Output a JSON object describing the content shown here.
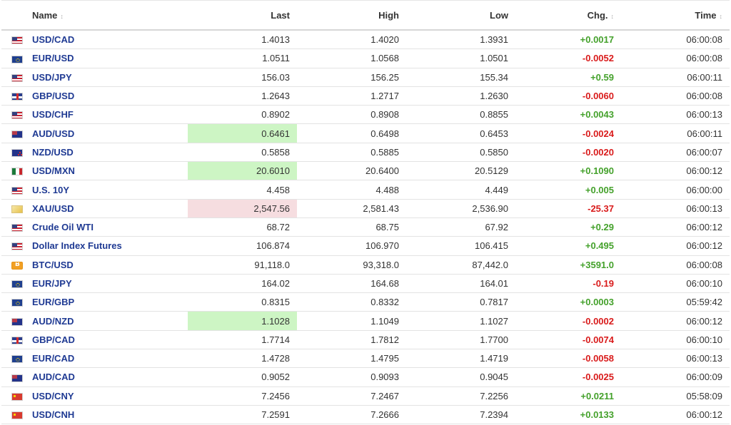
{
  "headers": {
    "name": "Name",
    "last": "Last",
    "high": "High",
    "low": "Low",
    "chg": "Chg.",
    "time": "Time"
  },
  "sort_icon": "↕",
  "rows": [
    {
      "flag": "us",
      "name": "USD/CAD",
      "last": "1.4013",
      "high": "1.4020",
      "low": "1.3931",
      "chg": "+0.0017",
      "time": "06:00:08",
      "dir": "up",
      "hl": ""
    },
    {
      "flag": "eu",
      "name": "EUR/USD",
      "last": "1.0511",
      "high": "1.0568",
      "low": "1.0501",
      "chg": "-0.0052",
      "time": "06:00:08",
      "dir": "down",
      "hl": ""
    },
    {
      "flag": "us",
      "name": "USD/JPY",
      "last": "156.03",
      "high": "156.25",
      "low": "155.34",
      "chg": "+0.59",
      "time": "06:00:11",
      "dir": "up",
      "hl": ""
    },
    {
      "flag": "gb",
      "name": "GBP/USD",
      "last": "1.2643",
      "high": "1.2717",
      "low": "1.2630",
      "chg": "-0.0060",
      "time": "06:00:08",
      "dir": "down",
      "hl": ""
    },
    {
      "flag": "us",
      "name": "USD/CHF",
      "last": "0.8902",
      "high": "0.8908",
      "low": "0.8855",
      "chg": "+0.0043",
      "time": "06:00:13",
      "dir": "up",
      "hl": ""
    },
    {
      "flag": "au",
      "name": "AUD/USD",
      "last": "0.6461",
      "high": "0.6498",
      "low": "0.6453",
      "chg": "-0.0024",
      "time": "06:00:11",
      "dir": "down",
      "hl": "green"
    },
    {
      "flag": "nz",
      "name": "NZD/USD",
      "last": "0.5858",
      "high": "0.5885",
      "low": "0.5850",
      "chg": "-0.0020",
      "time": "06:00:07",
      "dir": "down",
      "hl": ""
    },
    {
      "flag": "mx",
      "name": "USD/MXN",
      "last": "20.6010",
      "high": "20.6400",
      "low": "20.5129",
      "chg": "+0.1090",
      "time": "06:00:12",
      "dir": "up",
      "hl": "green"
    },
    {
      "flag": "us",
      "name": "U.S. 10Y",
      "last": "4.458",
      "high": "4.488",
      "low": "4.449",
      "chg": "+0.005",
      "time": "06:00:00",
      "dir": "up",
      "hl": ""
    },
    {
      "flag": "xau",
      "name": "XAU/USD",
      "last": "2,547.56",
      "high": "2,581.43",
      "low": "2,536.90",
      "chg": "-25.37",
      "time": "06:00:13",
      "dir": "down",
      "hl": "red"
    },
    {
      "flag": "us",
      "name": "Crude Oil WTI",
      "last": "68.72",
      "high": "68.75",
      "low": "67.92",
      "chg": "+0.29",
      "time": "06:00:12",
      "dir": "up",
      "hl": ""
    },
    {
      "flag": "us",
      "name": "Dollar Index Futures",
      "last": "106.874",
      "high": "106.970",
      "low": "106.415",
      "chg": "+0.495",
      "time": "06:00:12",
      "dir": "up",
      "hl": ""
    },
    {
      "flag": "btc",
      "name": "BTC/USD",
      "last": "91,118.0",
      "high": "93,318.0",
      "low": "87,442.0",
      "chg": "+3591.0",
      "time": "06:00:08",
      "dir": "up",
      "hl": ""
    },
    {
      "flag": "eu",
      "name": "EUR/JPY",
      "last": "164.02",
      "high": "164.68",
      "low": "164.01",
      "chg": "-0.19",
      "time": "06:00:10",
      "dir": "down",
      "hl": ""
    },
    {
      "flag": "eu",
      "name": "EUR/GBP",
      "last": "0.8315",
      "high": "0.8332",
      "low": "0.7817",
      "chg": "+0.0003",
      "time": "05:59:42",
      "dir": "up",
      "hl": ""
    },
    {
      "flag": "au",
      "name": "AUD/NZD",
      "last": "1.1028",
      "high": "1.1049",
      "low": "1.1027",
      "chg": "-0.0002",
      "time": "06:00:12",
      "dir": "down",
      "hl": "green"
    },
    {
      "flag": "gb",
      "name": "GBP/CAD",
      "last": "1.7714",
      "high": "1.7812",
      "low": "1.7700",
      "chg": "-0.0074",
      "time": "06:00:10",
      "dir": "down",
      "hl": ""
    },
    {
      "flag": "eu",
      "name": "EUR/CAD",
      "last": "1.4728",
      "high": "1.4795",
      "low": "1.4719",
      "chg": "-0.0058",
      "time": "06:00:13",
      "dir": "down",
      "hl": ""
    },
    {
      "flag": "au",
      "name": "AUD/CAD",
      "last": "0.9052",
      "high": "0.9093",
      "low": "0.9045",
      "chg": "-0.0025",
      "time": "06:00:09",
      "dir": "down",
      "hl": ""
    },
    {
      "flag": "cn",
      "name": "USD/CNY",
      "last": "7.2456",
      "high": "7.2467",
      "low": "7.2256",
      "chg": "+0.0211",
      "time": "05:58:09",
      "dir": "up",
      "hl": ""
    },
    {
      "flag": "cn",
      "name": "USD/CNH",
      "last": "7.2591",
      "high": "7.2666",
      "low": "7.2394",
      "chg": "+0.0133",
      "time": "06:00:12",
      "dir": "up",
      "hl": ""
    }
  ]
}
